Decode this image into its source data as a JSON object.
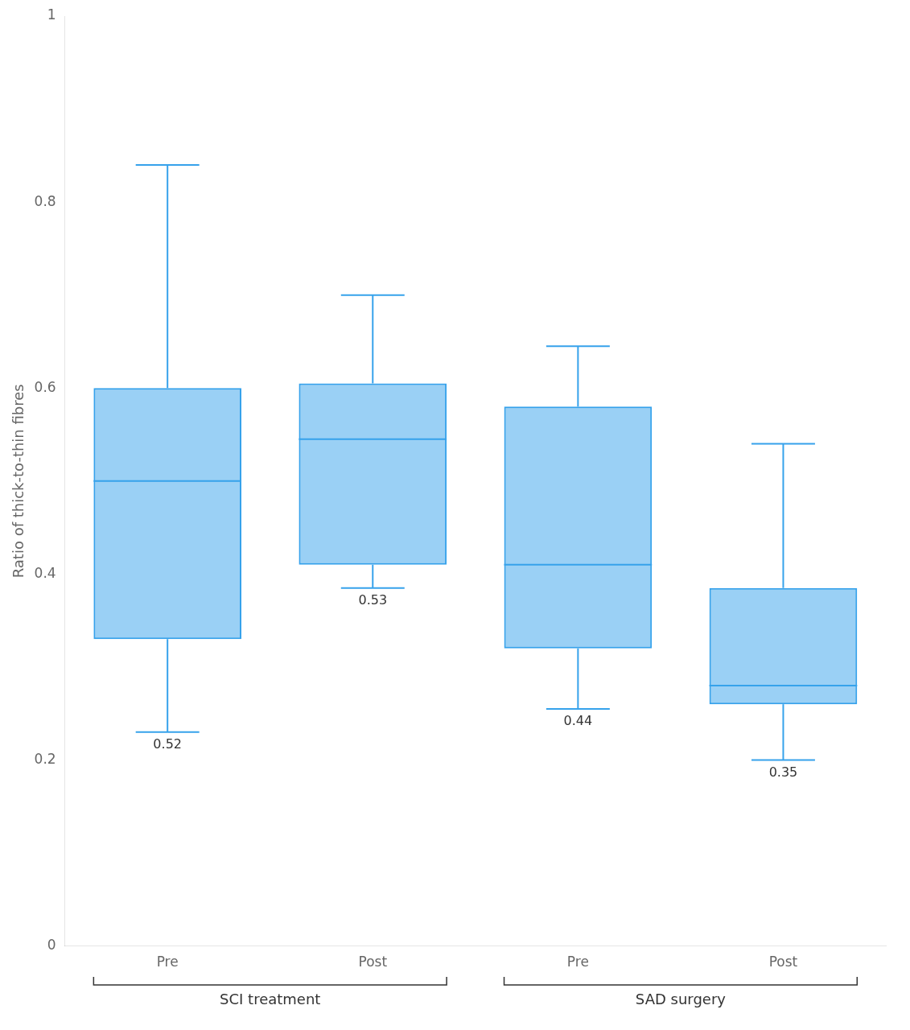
{
  "chart_data": {
    "type": "boxplot",
    "y_label": "Ratio of thick-to-thin fibres",
    "categories": [
      "Pre",
      "Post",
      "Pre",
      "Post"
    ],
    "groups": [
      {
        "label": "SCI treatment",
        "categories": [
          "Pre",
          "Post"
        ]
      },
      {
        "label": "SAD surgery",
        "categories": [
          "Pre",
          "Post"
        ]
      }
    ],
    "values": [
      {
        "whisker_low": 0.23,
        "q1": 0.33,
        "median": 0.5,
        "q3": 0.6,
        "whisker_high": 0.84,
        "mean": 0.52
      },
      {
        "whisker_low": 0.385,
        "q1": 0.41,
        "median": 0.545,
        "q3": 0.605,
        "whisker_high": 0.7,
        "mean": 0.53
      },
      {
        "whisker_low": 0.255,
        "q1": 0.32,
        "median": 0.41,
        "q3": 0.58,
        "whisker_high": 0.645,
        "mean": 0.44
      },
      {
        "whisker_low": 0.2,
        "q1": 0.26,
        "median": 0.28,
        "q3": 0.385,
        "whisker_high": 0.54,
        "mean": 0.35
      }
    ],
    "ylim": [
      0,
      1.0
    ],
    "yticks": [
      0,
      0.2,
      0.4,
      0.6,
      0.8,
      1
    ],
    "grid": false
  }
}
